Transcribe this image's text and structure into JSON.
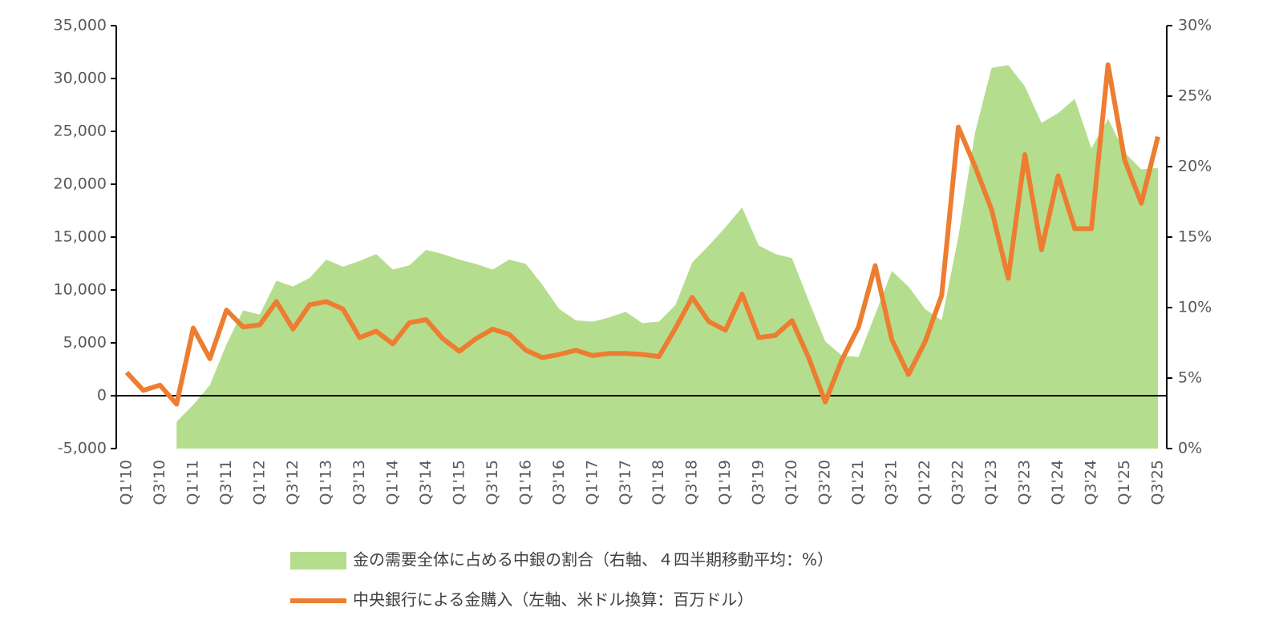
{
  "chart_data": {
    "type": "area-line",
    "legend": [
      "金の需要全体に占める中銀の割合（右軸、４四半期移動平均：%）",
      "中央銀行による金購入（左軸、米ドル換算：百万ドル）"
    ],
    "categories": [
      "Q1'10",
      null,
      "Q3'10",
      null,
      "Q1'11",
      null,
      "Q3'11",
      null,
      "Q1'12",
      null,
      "Q3'12",
      null,
      "Q1'13",
      null,
      "Q3'13",
      null,
      "Q1'14",
      null,
      "Q3'14",
      null,
      "Q1'15",
      null,
      "Q3'15",
      null,
      "Q1'16",
      null,
      "Q3'16",
      null,
      "Q1'17",
      null,
      "Q3'17",
      null,
      "Q1'18",
      null,
      "Q3'18",
      null,
      "Q1'19",
      null,
      "Q3'19",
      null,
      "Q1'20",
      null,
      "Q3'20",
      null,
      "Q1'21",
      null,
      "Q3'21",
      null,
      "Q1'22",
      null,
      "Q3'22",
      null,
      "Q1'23",
      null,
      "Q3'23",
      null,
      "Q1'24",
      null,
      "Q3'24",
      null,
      "Q1'25",
      null,
      "Q3'25"
    ],
    "series": [
      {
        "name": "金の需要全体に占める中銀の割合（右軸、４四半期移動平均：%）",
        "kind": "area",
        "axis": "y2",
        "color": "#b5dd8e",
        "values": [
          null,
          null,
          null,
          1.9,
          3.1,
          4.5,
          7.4,
          9.8,
          9.5,
          11.9,
          11.5,
          12.1,
          13.4,
          12.9,
          13.3,
          13.8,
          12.7,
          13.0,
          14.1,
          13.8,
          13.4,
          13.1,
          12.7,
          13.4,
          13.1,
          11.6,
          9.9,
          9.1,
          9.0,
          9.3,
          9.7,
          8.9,
          9.0,
          10.2,
          13.2,
          14.4,
          15.7,
          17.1,
          14.4,
          13.8,
          13.5,
          10.5,
          7.6,
          6.6,
          6.5,
          9.5,
          12.6,
          11.5,
          9.9,
          9.1,
          15.0,
          22.4,
          27.0,
          27.2,
          25.7,
          23.1,
          23.8,
          24.8,
          21.3,
          23.4,
          21.0,
          19.8,
          19.9
        ]
      },
      {
        "name": "中央銀行による金購入（左軸、米ドル換算：百万ドル）",
        "kind": "line",
        "axis": "y",
        "color": "#ed7d31",
        "values": [
          2200,
          500,
          1000,
          -800,
          6400,
          3500,
          8100,
          6500,
          6700,
          8900,
          6300,
          8600,
          8900,
          8200,
          5500,
          6100,
          4900,
          6900,
          7200,
          5400,
          4200,
          5400,
          6300,
          5800,
          4300,
          3600,
          3900,
          4300,
          3800,
          4000,
          4000,
          3900,
          3700,
          6400,
          9300,
          7000,
          6200,
          9600,
          5500,
          5700,
          7100,
          3600,
          -600,
          3400,
          6500,
          12300,
          5300,
          2000,
          5100,
          9500,
          25400,
          21700,
          17600,
          11100,
          22800,
          13800,
          20800,
          15800,
          15800,
          31300,
          22300,
          18200,
          24500
        ]
      }
    ],
    "ylim": [
      -5000,
      35000
    ],
    "yticks": [
      {
        "value": -5000,
        "label": "-5,000"
      },
      0,
      {
        "value": 5000,
        "label": "5,000"
      },
      {
        "value": 10000,
        "label": "10,000"
      },
      {
        "value": 15000,
        "label": "15,000"
      },
      {
        "value": 20000,
        "label": "20,000"
      },
      {
        "value": 25000,
        "label": "25,000"
      },
      {
        "value": 30000,
        "label": "30,000"
      },
      {
        "value": 35000,
        "label": "35,000"
      }
    ],
    "y2lim": [
      0,
      30
    ],
    "y2ticks": [
      {
        "value": 0,
        "label": "0%"
      },
      {
        "value": 5,
        "label": "5%"
      },
      {
        "value": 10,
        "label": "10%"
      },
      {
        "value": 15,
        "label": "15%"
      },
      {
        "value": 20,
        "label": "20%"
      },
      {
        "value": 25,
        "label": "25%"
      },
      {
        "value": 30,
        "label": "30%"
      }
    ],
    "grid": false
  }
}
